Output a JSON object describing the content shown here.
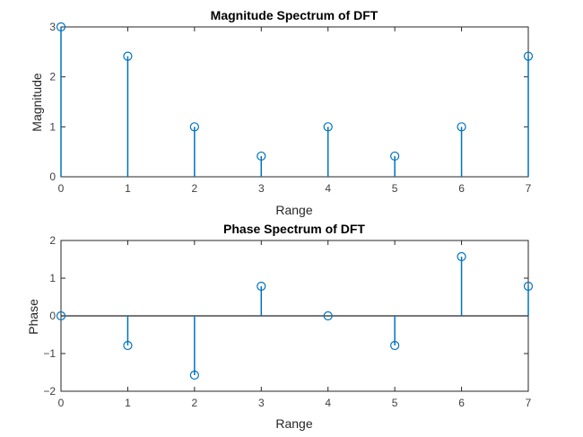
{
  "colors": {
    "stem": "#0072BD",
    "axis": "#262626",
    "baseline": "#262626"
  },
  "chart_data": [
    {
      "type": "stem",
      "title": "Magnitude Spectrum of DFT",
      "xlabel": "Range",
      "ylabel": "Magnitude",
      "xlim": [
        0,
        7
      ],
      "ylim": [
        0,
        3
      ],
      "xticks": [
        0,
        1,
        2,
        3,
        4,
        5,
        6,
        7
      ],
      "yticks": [
        0,
        1,
        2,
        3
      ],
      "x": [
        0,
        1,
        2,
        3,
        4,
        5,
        6,
        7
      ],
      "values": [
        3,
        2.414,
        1,
        0.414,
        1,
        0.414,
        1,
        2.414
      ],
      "grid": false,
      "baseline": false
    },
    {
      "type": "stem",
      "title": "Phase Spectrum of DFT",
      "xlabel": "Range",
      "ylabel": "Phase",
      "xlim": [
        0,
        7
      ],
      "ylim": [
        -2,
        2
      ],
      "xticks": [
        0,
        1,
        2,
        3,
        4,
        5,
        6,
        7
      ],
      "yticks": [
        -2,
        -1,
        0,
        1,
        2
      ],
      "x": [
        0,
        1,
        2,
        3,
        4,
        5,
        6,
        7
      ],
      "values": [
        0,
        -0.785,
        -1.571,
        0.785,
        0,
        -0.785,
        1.571,
        0.785
      ],
      "grid": false,
      "baseline": true
    }
  ]
}
